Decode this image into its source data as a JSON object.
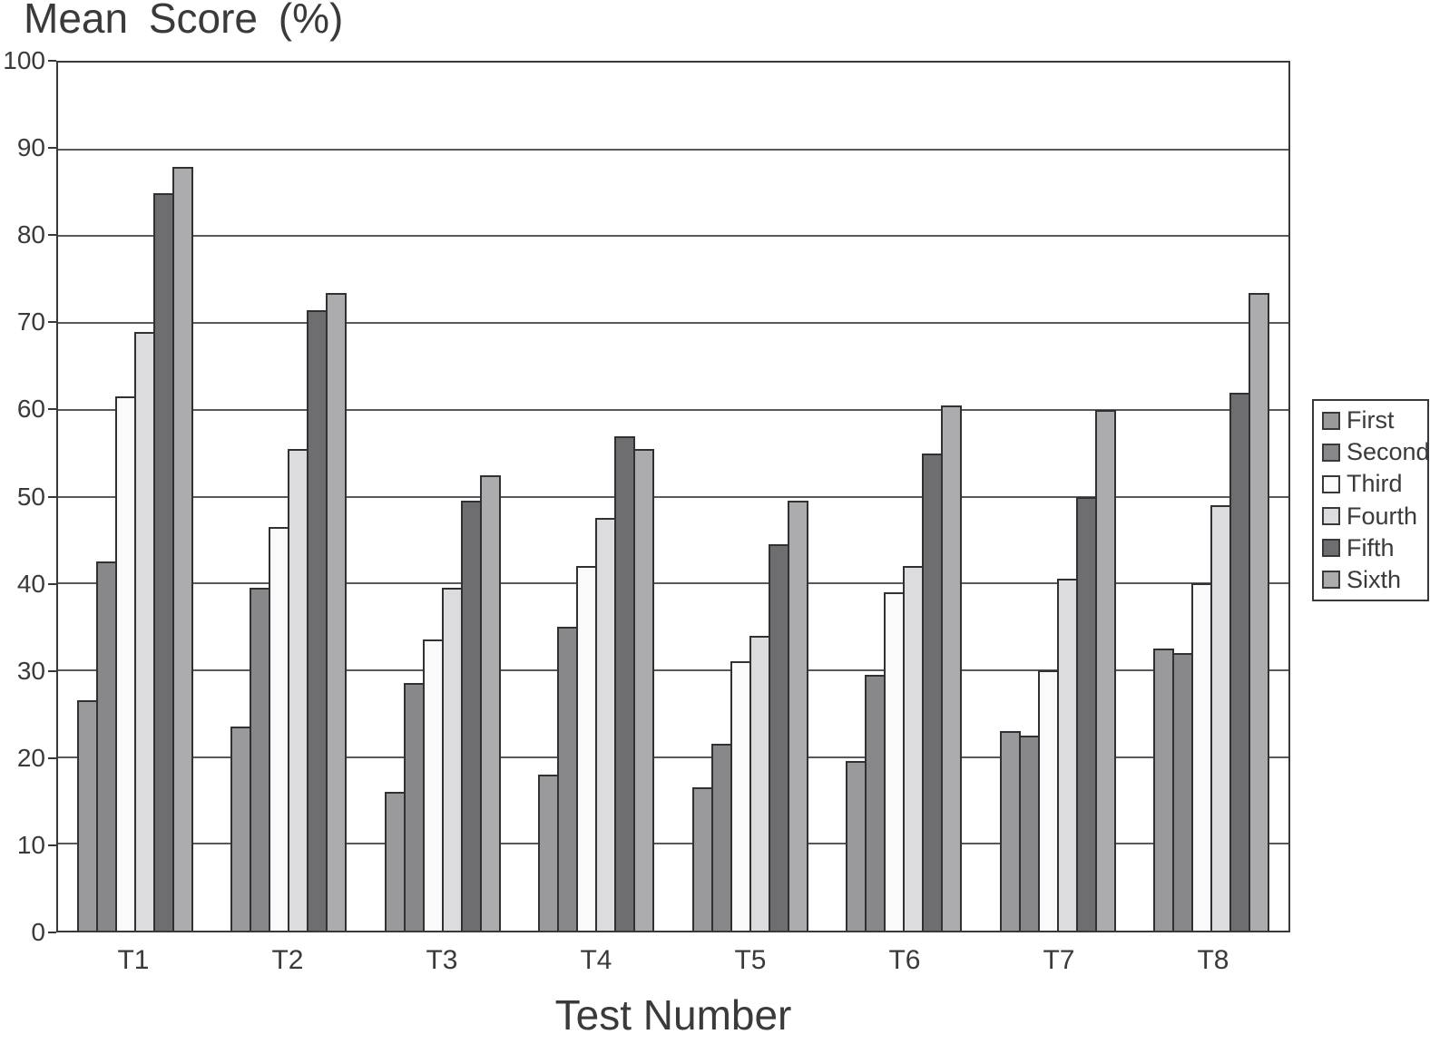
{
  "chart_data": {
    "type": "bar",
    "title": "Mean Score (%)",
    "xlabel": "Test Number",
    "ylabel": "Mean Score (%)",
    "ylim": [
      0,
      100
    ],
    "yticks": [
      0,
      10,
      20,
      30,
      40,
      50,
      60,
      70,
      80,
      90,
      100
    ],
    "grid": true,
    "legend_position": "right",
    "categories": [
      "T1",
      "T2",
      "T3",
      "T4",
      "T5",
      "T6",
      "T7",
      "T8"
    ],
    "series": [
      {
        "name": "First",
        "color": "#9a9a9c",
        "values": [
          26.5,
          23.5,
          16,
          18,
          16.5,
          19.5,
          23,
          32.5
        ]
      },
      {
        "name": "Second",
        "color": "#88888a",
        "values": [
          42.5,
          39.5,
          28.5,
          35,
          21.5,
          29.5,
          22.5,
          32
        ]
      },
      {
        "name": "Third",
        "color": "#fafafa",
        "values": [
          61.5,
          46.5,
          33.5,
          42,
          31,
          39,
          30,
          40
        ]
      },
      {
        "name": "Fourth",
        "color": "#dcdcde",
        "values": [
          69,
          55.5,
          39.5,
          47.5,
          34,
          42,
          40.5,
          49
        ]
      },
      {
        "name": "Fifth",
        "color": "#6e6e70",
        "values": [
          85,
          71.5,
          49.5,
          57,
          44.5,
          55,
          50,
          62
        ]
      },
      {
        "name": "Sixth",
        "color": "#acacae",
        "values": [
          88,
          73.5,
          52.5,
          55.5,
          49.5,
          60.5,
          60,
          73.5
        ]
      }
    ],
    "colors": {
      "plot_border": "#39393b",
      "gridline": "#59595b",
      "bar_border": "#313133",
      "text": "#3a3a3c",
      "background": "#ffffff"
    }
  }
}
